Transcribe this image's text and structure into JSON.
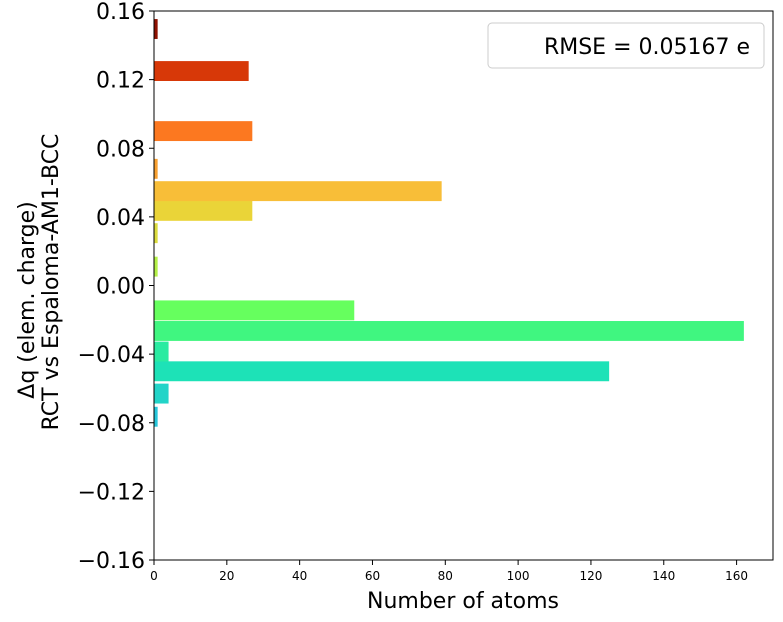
{
  "chart_data": {
    "type": "bar",
    "orientation": "horizontal",
    "xlabel": "Number of atoms",
    "ylabel_lines": [
      "Δq (elem. charge)",
      "RCT vs Espaloma-AM1-BCC"
    ],
    "xlim": [
      0,
      170
    ],
    "ylim": [
      -0.16,
      0.16
    ],
    "xticks": [
      0,
      20,
      40,
      60,
      80,
      100,
      120,
      140,
      160
    ],
    "yticks": [
      -0.16,
      -0.12,
      -0.08,
      -0.04,
      0.0,
      0.04,
      0.08,
      0.12,
      0.16
    ],
    "ytick_labels": [
      "−0.16",
      "−0.12",
      "−0.08",
      "−0.04",
      "0.00",
      "0.04",
      "0.08",
      "0.12",
      "0.16"
    ],
    "legend": {
      "text": "RMSE = 0.05167 e",
      "position": "top-right"
    },
    "bin_width": 0.0116,
    "bars": [
      {
        "y": -0.0765,
        "count": 1,
        "color": "#26c6da"
      },
      {
        "y": -0.063,
        "count": 4,
        "color": "#22d4c8"
      },
      {
        "y": -0.05,
        "count": 125,
        "color": "#1de2b7"
      },
      {
        "y": -0.0385,
        "count": 4,
        "color": "#2aeba1"
      },
      {
        "y": -0.0265,
        "count": 162,
        "color": "#40f680"
      },
      {
        "y": -0.0145,
        "count": 55,
        "color": "#66ff5e"
      },
      {
        "y": 0.011,
        "count": 1,
        "color": "#b4f046"
      },
      {
        "y": 0.0305,
        "count": 1,
        "color": "#dbdb3d"
      },
      {
        "y": 0.0435,
        "count": 27,
        "color": "#ead438"
      },
      {
        "y": 0.055,
        "count": 79,
        "color": "#f8be38"
      },
      {
        "y": 0.068,
        "count": 1,
        "color": "#f8a030"
      },
      {
        "y": 0.09,
        "count": 27,
        "color": "#fc7820"
      },
      {
        "y": 0.125,
        "count": 26,
        "color": "#d73808"
      },
      {
        "y": 0.1495,
        "count": 1,
        "color": "#8f1202"
      }
    ]
  }
}
